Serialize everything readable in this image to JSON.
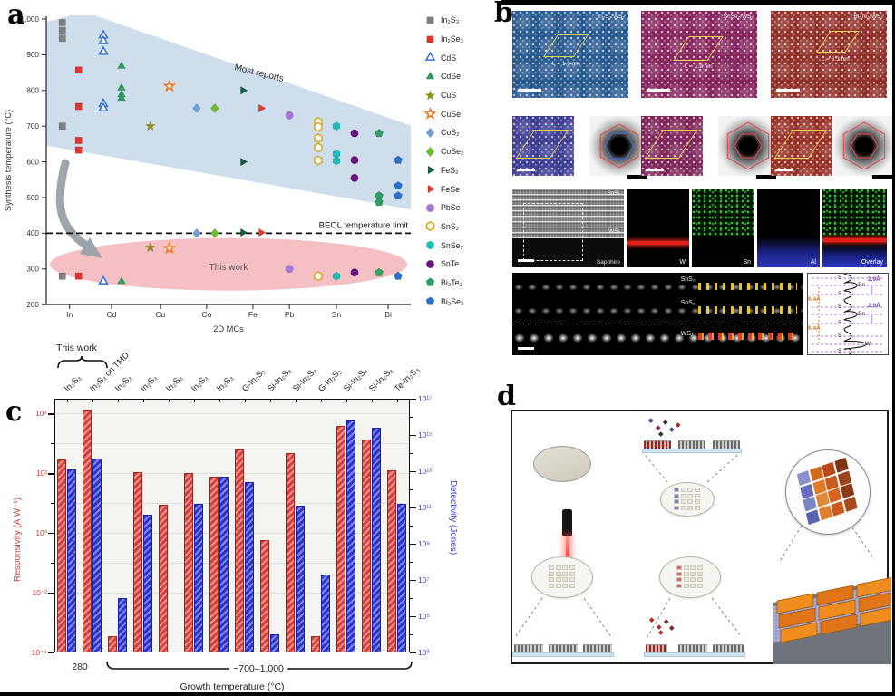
{
  "figure": {
    "panel_labels": {
      "a": "a",
      "b": "b",
      "c": "c",
      "d": "d"
    }
  },
  "chart_data": {
    "panel_a": {
      "type": "scatter",
      "xlabel": "2D MCs",
      "ylabel": "Synthesis temperature (°C)",
      "ylim": [
        200,
        1000
      ],
      "yticks": [
        200,
        300,
        400,
        500,
        600,
        700,
        800,
        900,
        1000
      ],
      "ytick_labels": [
        "200",
        "300",
        "400",
        "500",
        "600",
        "700",
        "800",
        "900",
        "1,000"
      ],
      "categories": [
        "In",
        "Cd",
        "Cu",
        "Co",
        "Fe",
        "Pb",
        "Sn",
        "Bi"
      ],
      "cat_positions": {
        "In": 0.064,
        "Cd": 0.179,
        "Cu": 0.313,
        "Co": 0.44,
        "Fe": 0.567,
        "Pb": 0.667,
        "Sn": 0.796,
        "Bi": 0.938
      },
      "annotations": {
        "band_label": "Most reports",
        "ellipse_label": "This work",
        "beol_label": "BEOL temperature limit",
        "beol_temp": 400
      },
      "band_color": "#ccdcec",
      "ellipse_color": "#f3b9bd",
      "series": [
        {
          "label": "In₂S₃",
          "shape": "square",
          "color": "#7f7f7f",
          "fill": "filled",
          "cat": "In",
          "dx": -8,
          "temps": [
            990,
            968,
            946,
            700,
            280
          ]
        },
        {
          "label": "In₂Se₃",
          "shape": "square",
          "color": "#e6332a",
          "fill": "filled",
          "cat": "In",
          "dx": 10,
          "temps": [
            857,
            755,
            660,
            633,
            280
          ]
        },
        {
          "label": "CdS",
          "shape": "triangle",
          "color": "#2e6fd0",
          "fill": "open",
          "cat": "Cd",
          "dx": -9,
          "temps": [
            954,
            938,
            908,
            762,
            750,
            265
          ]
        },
        {
          "label": "CdSe",
          "shape": "triangle",
          "color": "#2f9e5f",
          "fill": "filled",
          "cat": "Cd",
          "dx": 11,
          "temps": [
            868,
            807,
            788,
            778,
            265
          ]
        },
        {
          "label": "CuS",
          "shape": "star",
          "color": "#8f8f10",
          "fill": "filled",
          "cat": "Cu",
          "dx": -11,
          "temps": [
            700,
            360
          ]
        },
        {
          "label": "CuSe",
          "shape": "star",
          "color": "#f07818",
          "fill": "open",
          "cat": "Cu",
          "dx": 10,
          "temps": [
            812,
            358
          ]
        },
        {
          "label": "CoS₂",
          "shape": "diamond",
          "color": "#6f9fd8",
          "fill": "filled",
          "cat": "Co",
          "dx": -11,
          "temps": [
            750,
            400
          ]
        },
        {
          "label": "CoSe₂",
          "shape": "diamond",
          "color": "#6abf28",
          "fill": "filled",
          "cat": "Co",
          "dx": 9,
          "temps": [
            750,
            400
          ]
        },
        {
          "label": "FeS₂",
          "shape": "tri-right",
          "color": "#0f5f3c",
          "fill": "filled",
          "cat": "Fe",
          "dx": -11,
          "temps": [
            800,
            600,
            402
          ]
        },
        {
          "label": "FeSe",
          "shape": "tri-right",
          "color": "#e6392e",
          "fill": "filled",
          "cat": "Fe",
          "dx": 9,
          "temps": [
            750,
            402
          ]
        },
        {
          "label": "PbSe",
          "shape": "circle",
          "color": "#a974d8",
          "fill": "filled",
          "cat": "Pb",
          "dx": 0,
          "temps": [
            730,
            300
          ]
        },
        {
          "label": "SnS₂",
          "shape": "hexagon",
          "color": "#d8a41e",
          "fill": "open",
          "cat": "Sn",
          "dx": -20,
          "temps": [
            712,
            698,
            666,
            640,
            604,
            280
          ]
        },
        {
          "label": "SnSe₂",
          "shape": "hexagon",
          "color": "#1fbfbf",
          "fill": "filled",
          "cat": "Sn",
          "dx": 0,
          "temps": [
            700,
            622,
            603,
            280
          ]
        },
        {
          "label": "SnTe",
          "shape": "circle",
          "color": "#6a1080",
          "fill": "filled",
          "cat": "Sn",
          "dx": 20,
          "temps": [
            680,
            605,
            555,
            290
          ]
        },
        {
          "label": "Bi₂Te₃",
          "shape": "pentagon",
          "color": "#2f9e62",
          "fill": "filled",
          "cat": "Bi",
          "dx": -10,
          "temps": [
            680,
            505,
            487,
            290
          ]
        },
        {
          "label": "Bi₂Se₃",
          "shape": "pentagon",
          "color": "#2a72c8",
          "fill": "filled",
          "cat": "Bi",
          "dx": 11,
          "temps": [
            605,
            533,
            505,
            280
          ]
        }
      ]
    },
    "panel_c": {
      "type": "bar",
      "xlabel": "Growth temperature (°C)",
      "categories": [
        "In₂S₃",
        "In₂S₃ on TMD",
        "In₂S₃",
        "In₂S₃",
        "In₂S₃",
        "In₂S₃",
        "In₂S₃",
        "G-In₂S₃",
        "Si-In₂S₃",
        "Si-In₂S₃",
        "G-In₂S₃",
        "Si-In₂S₃",
        "Si-In₂S₃",
        "Te-In₂S₃"
      ],
      "series": [
        {
          "name": "Responsivity (A W⁻¹)",
          "color": "#d4403a",
          "values": [
            300.0,
            14000.0,
            0.00035,
            110.0,
            9,
            100.0,
            75.0,
            650.0,
            0.6,
            490.0,
            0.00035,
            4000.0,
            1400.0,
            130.0
          ]
        },
        {
          "name": "Detectivity (Jones)",
          "color": "#2f35cc",
          "values": [
            13000000000000.0,
            50000000000000.0,
            1000000.0,
            40000000000.0,
            null,
            150000000000.0,
            5000000000000.0,
            2500000000000.0,
            10000.0,
            130000000000.0,
            20000000.0,
            6000000000000000.0,
            2400000000000000.0,
            150000000000.0
          ]
        }
      ],
      "left_axis": {
        "label": "Responsivity (A W⁻¹)",
        "color": "#d4403a",
        "log_range": [
          -4,
          4.5
        ],
        "tick_decades": [
          -4,
          -2,
          0,
          2,
          4
        ],
        "tick_labels": [
          "10⁻⁴",
          "10⁻²",
          "10⁰",
          "10²",
          "10⁴"
        ]
      },
      "right_axis": {
        "label": "Detectivity (Jones)",
        "color": "#3a3ae0",
        "log_range": [
          3,
          17
        ],
        "tick_decades": [
          3,
          5,
          7,
          9,
          11,
          13,
          15,
          17
        ],
        "tick_labels": [
          "10³",
          "10⁵",
          "10⁷",
          "10⁹",
          "10¹¹",
          "10¹³",
          "10¹⁵",
          "10¹⁷"
        ]
      },
      "annotations": {
        "this_work": "This work",
        "temp_first": "280",
        "temp_rest": "~700–1,000"
      }
    }
  },
  "panel_b": {
    "moire_images": [
      {
        "label": "In₂S₃/WS₂",
        "period": "L = 1.6 nm"
      },
      {
        "label": "SnSe₂/WS₂",
        "period": "L = 1.9 nm"
      },
      {
        "label": "Bi₂Te₃/WS₂",
        "period": "L = 3.3 nm"
      }
    ],
    "cross_section": {
      "top": "SnS₂",
      "middle": "WS₂",
      "bottom": "Sapphire"
    },
    "eds_maps": [
      "W",
      "Sn",
      "Al",
      "Overlay"
    ],
    "haadf_layers": [
      "SnS₂",
      "SnS₂",
      "WS₂"
    ],
    "profile": {
      "atoms": [
        "S",
        "Sn",
        "S",
        "S",
        "Sn",
        "S",
        "S",
        "W",
        "S"
      ],
      "spacing_large": "6.4Å",
      "spacing_small": "2.9Å"
    }
  },
  "panel_d": {
    "array_colors": [
      [
        "#8b90c8",
        "#d2691f",
        "#b84a1a",
        "#7e3514"
      ],
      [
        "#666dbb",
        "#e07a28",
        "#cc5c1e",
        "#9a451c"
      ],
      [
        "#7d84c4",
        "#e08833",
        "#d4651f",
        "#8a3c18"
      ],
      [
        "#5a62b2",
        "#df7e2e",
        "#c85a20",
        "#a84a1c"
      ]
    ],
    "wafer_grid_accent": {
      "top": "#7b82c0",
      "bottom": "#d96a6a"
    },
    "tile_colors": [
      "#ef8c1e",
      "#e07518"
    ]
  }
}
